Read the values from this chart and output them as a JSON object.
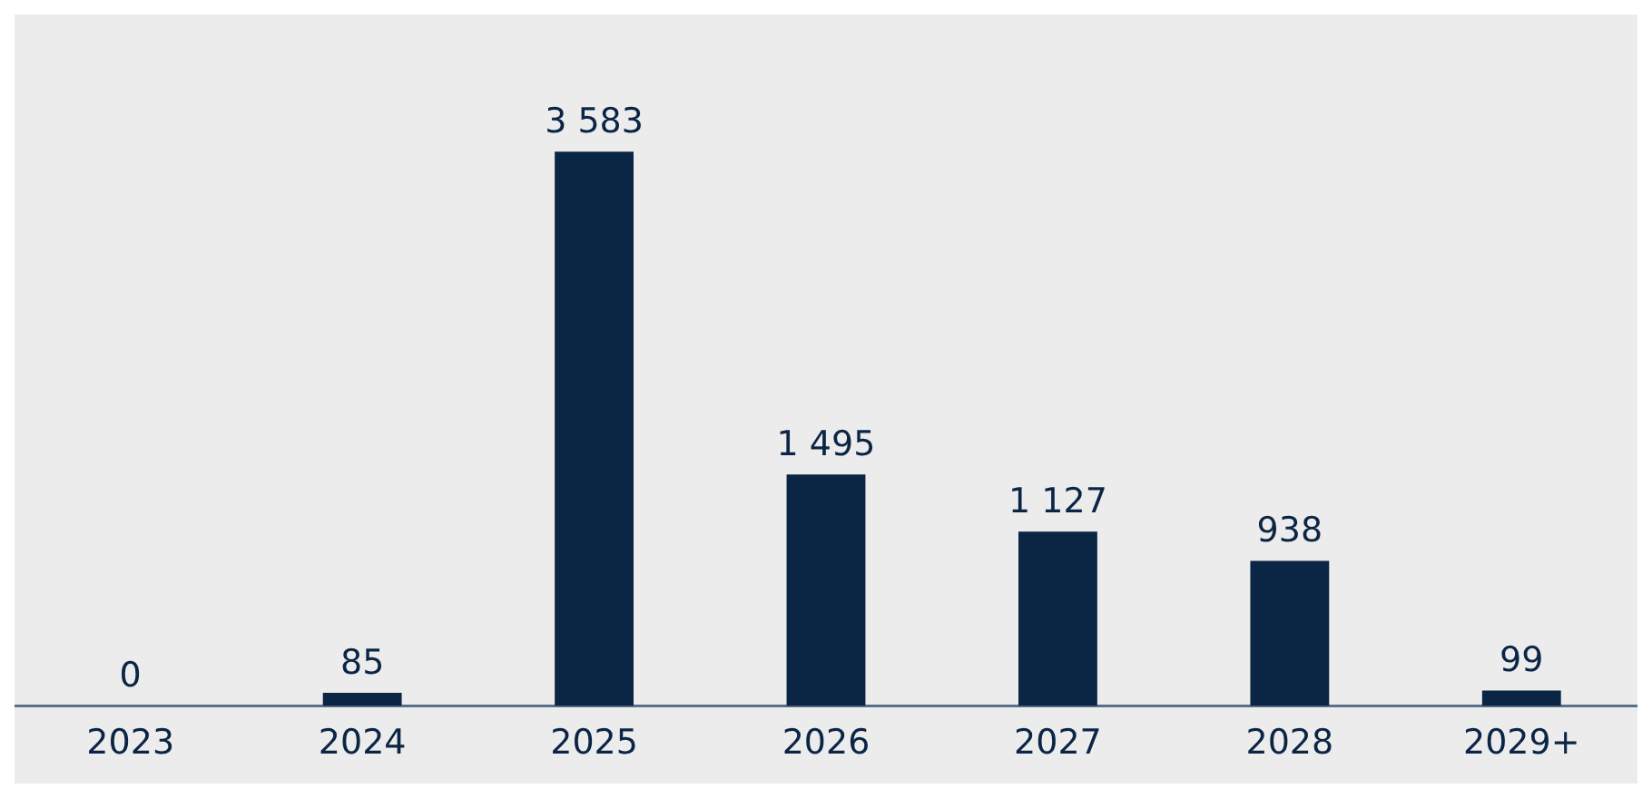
{
  "chart_data": {
    "type": "bar",
    "categories": [
      "2023",
      "2024",
      "2025",
      "2026",
      "2027",
      "2028",
      "2029+"
    ],
    "values": [
      0,
      85,
      3583,
      1495,
      1127,
      938,
      99
    ],
    "value_labels": [
      "0",
      "85",
      "3 583",
      "1 495",
      "1 127",
      "938",
      "99"
    ],
    "color": "#0b2545",
    "grid": false,
    "legend": false
  }
}
